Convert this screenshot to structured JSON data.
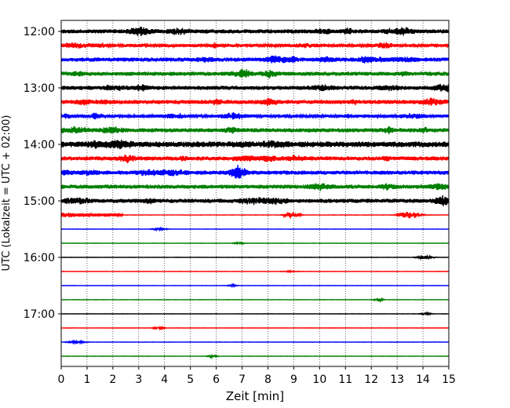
{
  "chart_data": {
    "type": "line",
    "title": "",
    "xlabel": "Zeit  [min]",
    "ylabel": "UTC (Lokalzeit = UTC + 02:00)",
    "xlim": [
      0,
      15
    ],
    "x_ticks": [
      "0",
      "1",
      "2",
      "3",
      "4",
      "5",
      "6",
      "7",
      "8",
      "9",
      "10",
      "11",
      "12",
      "13",
      "14",
      "15"
    ],
    "y_ticks": [
      "12:00",
      "13:00",
      "14:00",
      "15:00",
      "16:00",
      "17:00"
    ],
    "grid": "vertical dotted",
    "trace_interval_minutes": 15,
    "colors": [
      "#000000",
      "#ff0000",
      "#0000ff",
      "#008000"
    ],
    "series": [
      {
        "start": "12:00",
        "color": "#000000",
        "activity": "high"
      },
      {
        "start": "12:15",
        "color": "#ff0000",
        "activity": "medium"
      },
      {
        "start": "12:30",
        "color": "#0000ff",
        "activity": "high"
      },
      {
        "start": "12:45",
        "color": "#008000",
        "activity": "high"
      },
      {
        "start": "13:00",
        "color": "#000000",
        "activity": "high"
      },
      {
        "start": "13:15",
        "color": "#ff0000",
        "activity": "high"
      },
      {
        "start": "13:30",
        "color": "#0000ff",
        "activity": "medium"
      },
      {
        "start": "13:45",
        "color": "#008000",
        "activity": "high"
      },
      {
        "start": "14:00",
        "color": "#000000",
        "activity": "very high"
      },
      {
        "start": "14:15",
        "color": "#ff0000",
        "activity": "high"
      },
      {
        "start": "14:30",
        "color": "#0000ff",
        "activity": "high"
      },
      {
        "start": "14:45",
        "color": "#008000",
        "activity": "high"
      },
      {
        "start": "15:00",
        "color": "#000000",
        "activity": "high"
      },
      {
        "start": "15:15",
        "color": "#ff0000",
        "activity": "low"
      },
      {
        "start": "15:30",
        "color": "#0000ff",
        "activity": "quiet"
      },
      {
        "start": "15:45",
        "color": "#008000",
        "activity": "quiet"
      },
      {
        "start": "16:00",
        "color": "#000000",
        "activity": "quiet"
      },
      {
        "start": "16:15",
        "color": "#ff0000",
        "activity": "quiet"
      },
      {
        "start": "16:30",
        "color": "#0000ff",
        "activity": "quiet"
      },
      {
        "start": "16:45",
        "color": "#008000",
        "activity": "quiet"
      },
      {
        "start": "17:00",
        "color": "#000000",
        "activity": "quiet"
      },
      {
        "start": "17:15",
        "color": "#ff0000",
        "activity": "quiet"
      },
      {
        "start": "17:30",
        "color": "#0000ff",
        "activity": "quiet"
      },
      {
        "start": "17:45",
        "color": "#008000",
        "activity": "quiet"
      }
    ]
  }
}
